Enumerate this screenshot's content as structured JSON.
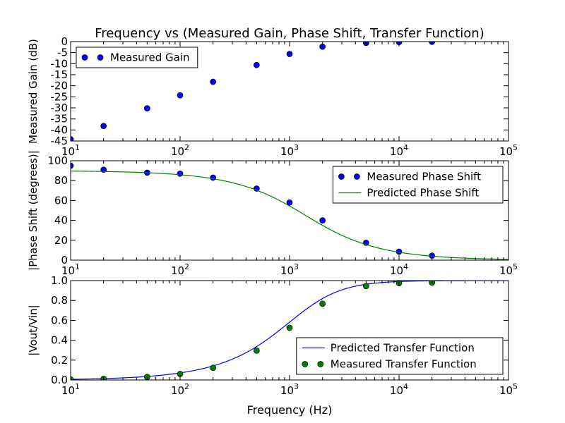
{
  "figure": {
    "title": "Frequency vs (Measured Gain, Phase Shift, Transfer Function)",
    "xlabel": "Frequency (Hz)"
  },
  "chart_data": [
    {
      "type": "scatter",
      "xscale": "log",
      "xlim": [
        10,
        100000
      ],
      "ylim": [
        -45,
        0
      ],
      "ylabel": "Measured Gain (dB)",
      "yticks": [
        0,
        -5,
        -10,
        -15,
        -20,
        -25,
        -30,
        -35,
        -40,
        -45
      ],
      "legend": "upper-left",
      "series": [
        {
          "name": "Measured Gain",
          "marker": "circle",
          "color": "#0000ff",
          "x": [
            10,
            20,
            50,
            100,
            200,
            500,
            1000,
            2000,
            5000,
            10000,
            20000
          ],
          "y": [
            -44.2,
            -38.2,
            -30.2,
            -24.3,
            -18.2,
            -10.6,
            -5.6,
            -2.3,
            -0.6,
            -0.2,
            -0.1
          ]
        }
      ]
    },
    {
      "type": "scatter",
      "xscale": "log",
      "xlim": [
        10,
        100000
      ],
      "ylim": [
        0,
        100
      ],
      "ylabel": "|Phase Shift (degrees)|",
      "yticks": [
        0,
        20,
        40,
        60,
        80,
        100
      ],
      "legend": "upper-right",
      "series": [
        {
          "name": "Measured Phase Shift",
          "marker": "circle",
          "color": "#0000ff",
          "x": [
            10,
            20,
            50,
            100,
            200,
            500,
            1000,
            2000,
            5000,
            10000,
            20000
          ],
          "y": [
            95,
            91,
            88,
            87,
            83,
            72,
            58,
            40,
            17.5,
            8.5,
            4.5
          ]
        },
        {
          "name": "Predicted Phase Shift",
          "marker": "line",
          "color": "#008000",
          "fc": 1400
        }
      ]
    },
    {
      "type": "scatter",
      "xscale": "log",
      "xlim": [
        10,
        100000
      ],
      "ylim": [
        0,
        1.0
      ],
      "ylabel": "|Vout/Vin|",
      "yticks": [
        0.0,
        0.2,
        0.4,
        0.6,
        0.8,
        1.0
      ],
      "legend": "lower-right",
      "series": [
        {
          "name": "Predicted Transfer Function",
          "marker": "line",
          "color": "#0000ff",
          "fc": 1400
        },
        {
          "name": "Measured Transfer Function",
          "marker": "circle",
          "color": "#008000",
          "x": [
            10,
            20,
            50,
            100,
            200,
            500,
            1000,
            2000,
            5000,
            10000,
            20000
          ],
          "y": [
            0.006,
            0.012,
            0.031,
            0.061,
            0.123,
            0.296,
            0.525,
            0.767,
            0.945,
            0.975,
            0.98
          ]
        }
      ]
    }
  ]
}
